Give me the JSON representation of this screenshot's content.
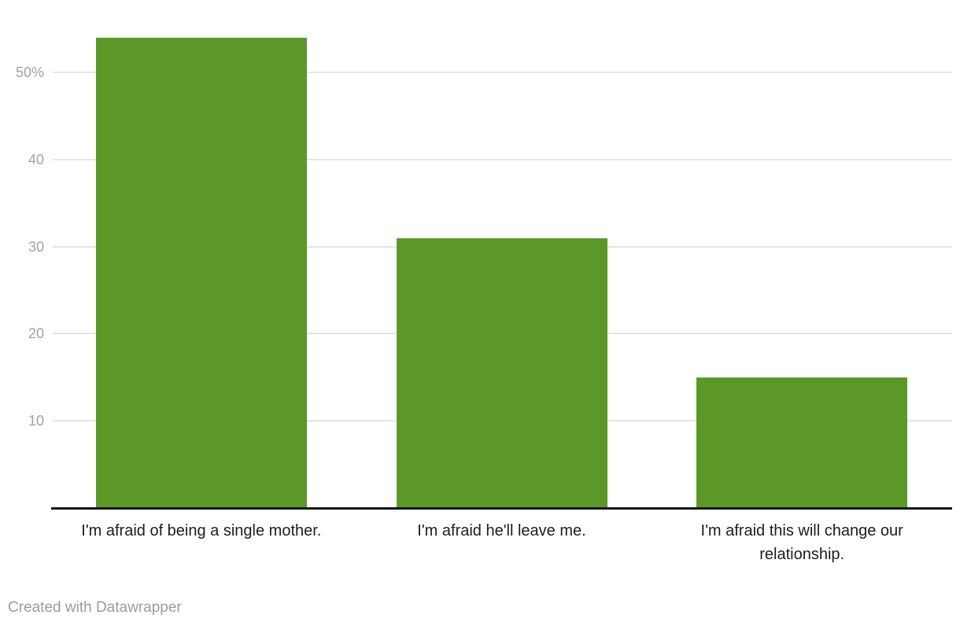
{
  "chart_data": {
    "type": "bar",
    "categories": [
      "I'm afraid of being a single mother.",
      "I'm afraid he'll leave me.",
      "I'm afraid this will change our relationship."
    ],
    "values": [
      54,
      31,
      15
    ],
    "title": "",
    "xlabel": "",
    "ylabel": "",
    "ylim": [
      0,
      55
    ],
    "yticks": [
      10,
      20,
      30,
      40,
      50
    ],
    "ytick_labels": [
      "10",
      "20",
      "30",
      "40",
      "50%"
    ],
    "grid": true,
    "legend": "none",
    "bar_color": "#5c9828"
  },
  "colors": {
    "bar": "#5c9828",
    "gridline": "#e4e4e4",
    "axis_line": "#161616",
    "y_tick_text": "#a2a2a2",
    "x_tick_text": "#1d1d1d",
    "credit_text": "#9c9c9c",
    "background": "#ffffff"
  },
  "footer": {
    "credit": "Created with Datawrapper"
  }
}
